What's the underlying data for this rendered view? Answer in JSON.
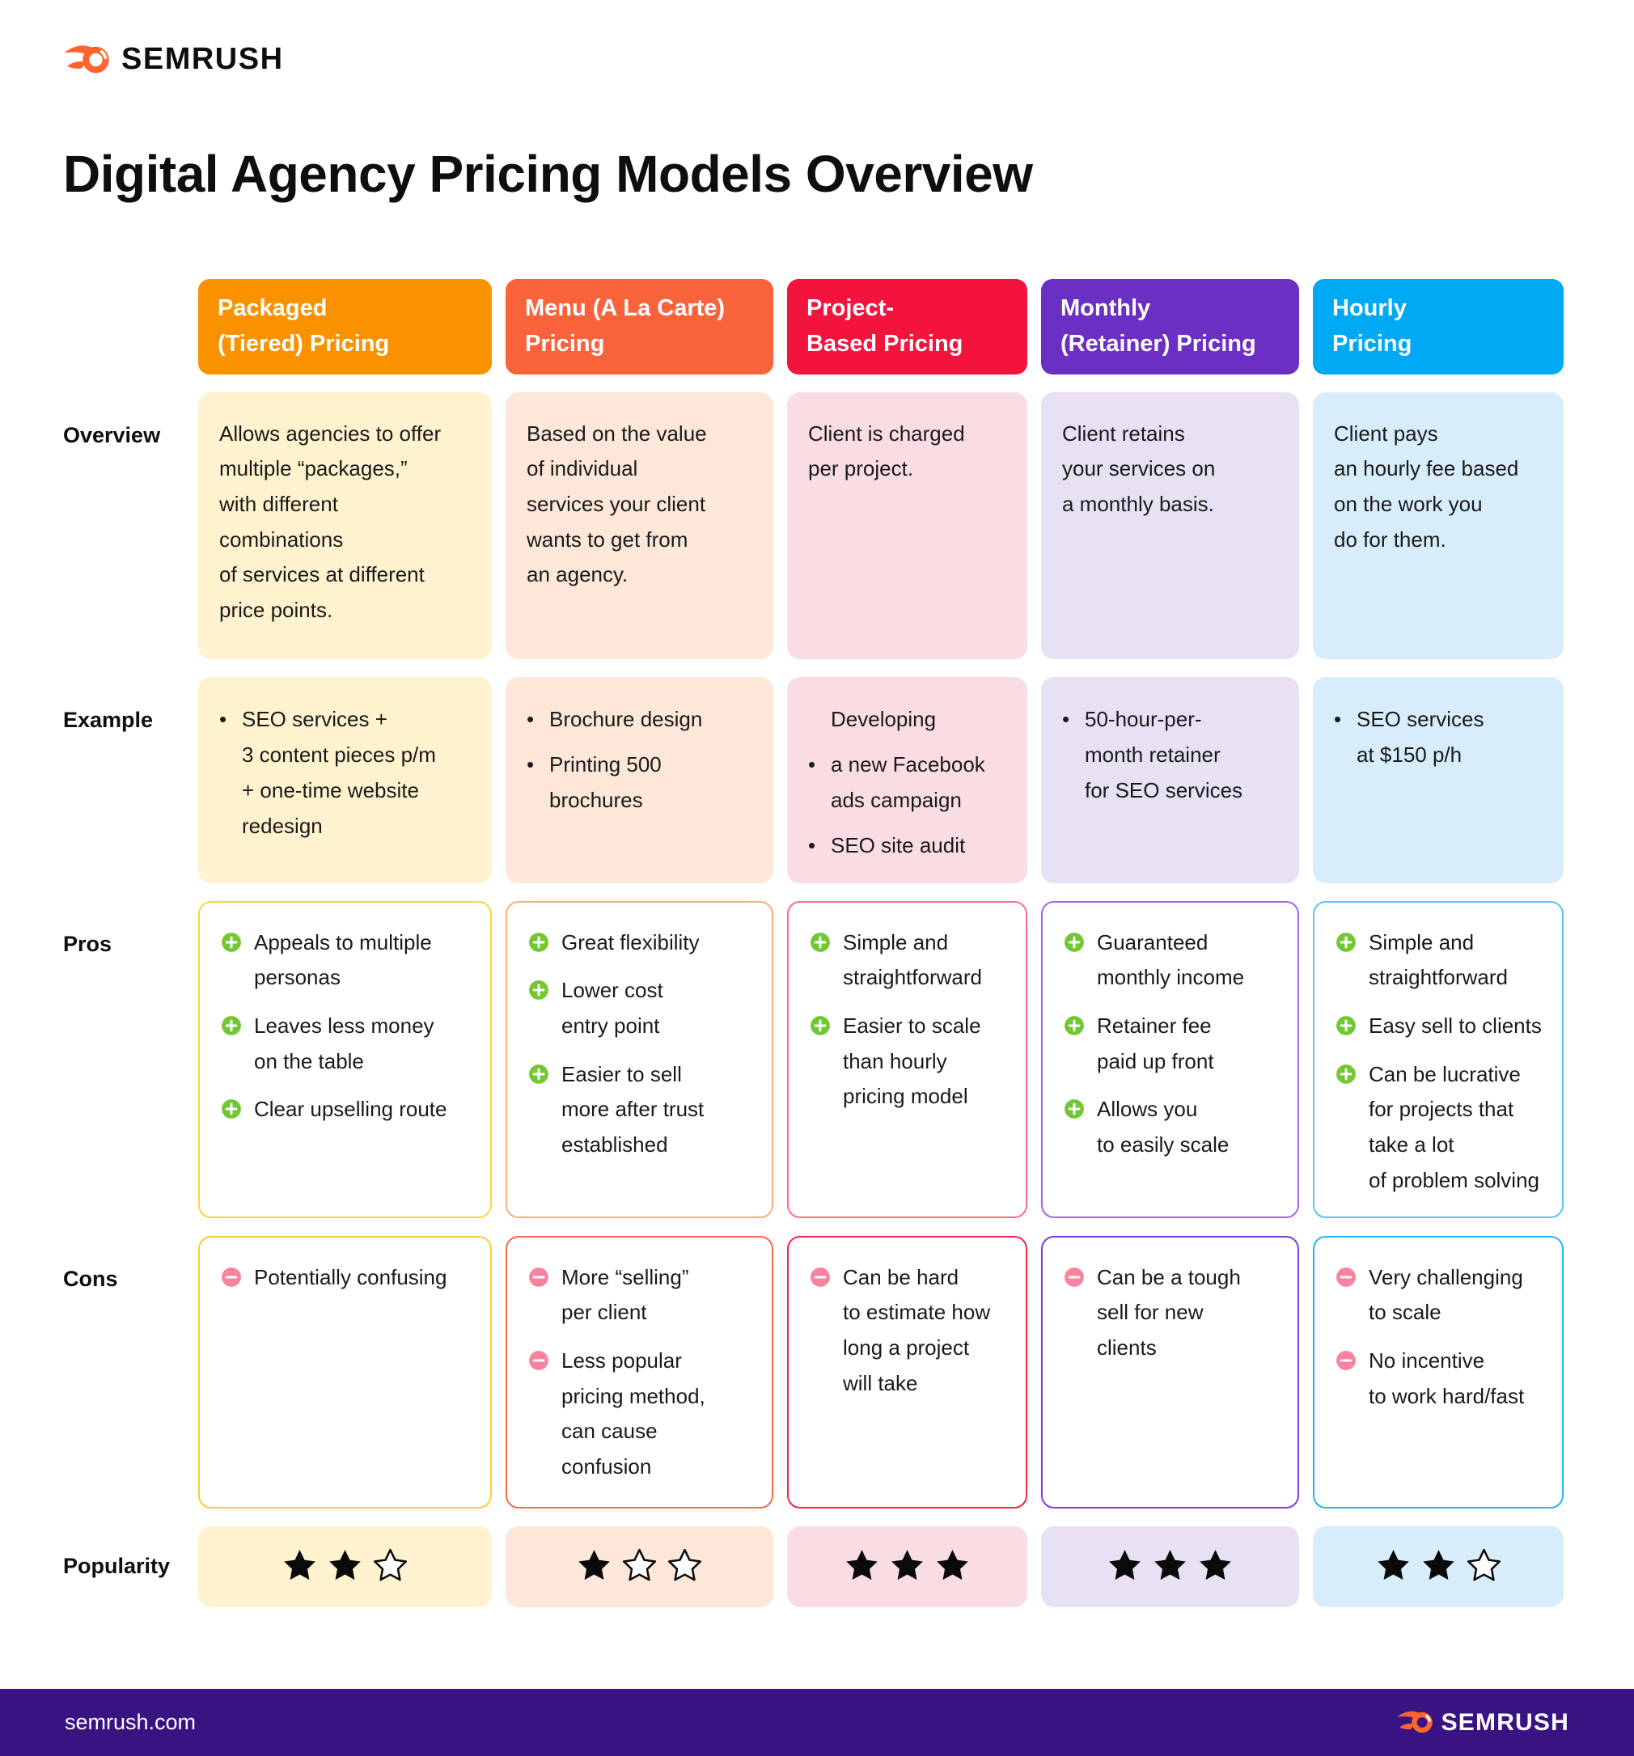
{
  "brand": {
    "logo_text": "SEMRUSH",
    "footer_url": "semrush.com",
    "footer_logo_text": "SEMRUSH",
    "flame_color": "#FF642D",
    "footer_bg": "#3A1383"
  },
  "title": "Digital Agency Pricing Models Overview",
  "row_labels": {
    "overview": "Overview",
    "example": "Example",
    "pros": "Pros",
    "cons": "Cons",
    "popularity": "Popularity"
  },
  "icons": {
    "plus_color": "#72C832",
    "minus_color": "#F9829E",
    "star_color": "#0A0A0A"
  },
  "popularity_max": 3,
  "columns": [
    {
      "id": "packaged",
      "header": "Packaged\n(Tiered) Pricing",
      "colors": {
        "header": "#FA9200",
        "tint": "#FEF3CE",
        "pros_border": "#FFD43B",
        "cons_border": "#FFCB2F"
      },
      "overview": "Allows agencies to offer\nmultiple “packages,”\nwith different\ncombinations\nof services at different\nprice points.",
      "example": [
        {
          "bullet": true,
          "text": "SEO services +\n3 content pieces p/m\n+ one-time website\nredesign"
        }
      ],
      "pros": [
        "Appeals to multiple\npersonas",
        "Leaves less money\non the table",
        "Clear upselling route"
      ],
      "cons": [
        "Potentially confusing"
      ],
      "stars": 2
    },
    {
      "id": "menu",
      "header": "Menu (A La Carte)\nPricing",
      "colors": {
        "header": "#F9633C",
        "tint": "#FCE7D8",
        "pros_border": "#FBAD7C",
        "cons_border": "#F9684A"
      },
      "overview": "Based on the value\nof individual\nservices your client\nwants to get from\nan agency.",
      "example": [
        {
          "bullet": true,
          "text": "Brochure design"
        },
        {
          "bullet": true,
          "text": "Printing 500\nbrochures"
        }
      ],
      "pros": [
        "Great flexibility",
        "Lower cost\nentry point",
        "Easier to sell\nmore after trust\nestablished"
      ],
      "cons": [
        "More “selling”\nper client",
        "Less popular\npricing method,\ncan cause\nconfusion"
      ],
      "stars": 1
    },
    {
      "id": "project",
      "header": "Project-\nBased Pricing",
      "colors": {
        "header": "#F3133C",
        "tint": "#FADCE3",
        "pros_border": "#FB6E86",
        "cons_border": "#F72349"
      },
      "overview": "Client is charged\nper project.",
      "example": [
        {
          "bullet": false,
          "text": "Developing"
        },
        {
          "bullet": true,
          "text": "a new Facebook\nads campaign"
        },
        {
          "bullet": true,
          "text": "SEO site audit"
        }
      ],
      "pros": [
        "Simple and\nstraightforward",
        "Easier to scale\nthan hourly\npricing model"
      ],
      "cons": [
        "Can be hard\nto estimate how\nlong a project\nwill take"
      ],
      "stars": 3
    },
    {
      "id": "monthly",
      "header": "Monthly\n(Retainer) Pricing",
      "colors": {
        "header": "#6B2FC4",
        "tint": "#E8E0F3",
        "pros_border": "#A265F2",
        "cons_border": "#7F3BE0"
      },
      "overview": "Client retains\nyour services on\na monthly basis.",
      "example": [
        {
          "bullet": true,
          "text": "50-hour-per-\nmonth retainer\nfor SEO services"
        }
      ],
      "pros": [
        "Guaranteed\nmonthly income",
        "Retainer fee\npaid up front",
        "Allows you\nto easily scale"
      ],
      "cons": [
        "Can be a tough\nsell for new\nclients"
      ],
      "stars": 3
    },
    {
      "id": "hourly",
      "header": "Hourly\nPricing",
      "colors": {
        "header": "#00A9F4",
        "tint": "#D7EDFB",
        "pros_border": "#55C5F8",
        "cons_border": "#24B3F6"
      },
      "overview": "Client pays\nan hourly fee based\non the work you\ndo for them.",
      "example": [
        {
          "bullet": true,
          "text": "SEO services\nat $150 p/h"
        }
      ],
      "pros": [
        "Simple and\nstraightforward",
        "Easy sell to clients",
        "Can be lucrative\nfor projects that\ntake a lot\nof problem solving"
      ],
      "cons": [
        "Very challenging\nto scale",
        "No incentive\nto work hard/fast"
      ],
      "stars": 2
    }
  ]
}
